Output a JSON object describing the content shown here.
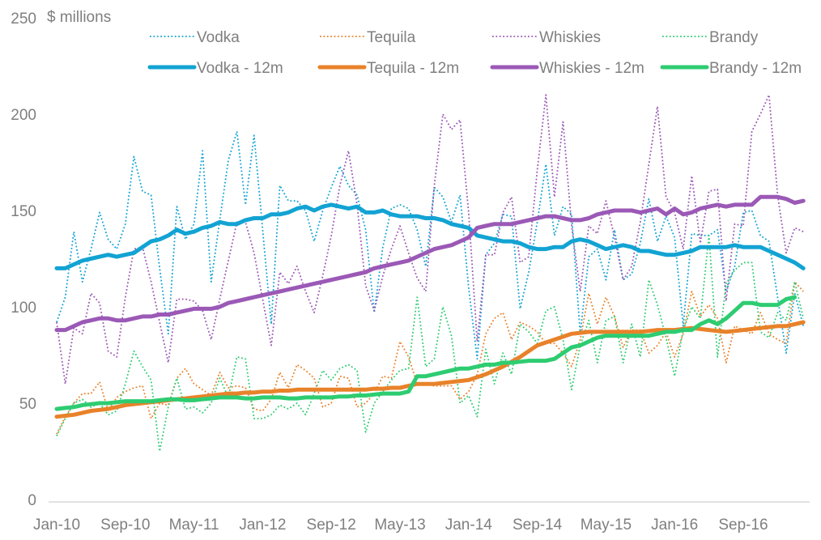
{
  "chart_data": {
    "type": "line",
    "title": "",
    "ylabel": "$ millions",
    "xlabel": "",
    "ylim": [
      0,
      250
    ],
    "yticks": [
      "0",
      "50",
      "100",
      "150",
      "200",
      "250"
    ],
    "ytick_values": [
      0,
      50,
      100,
      150,
      200,
      250
    ],
    "xtick_labels": [
      "Jan-10",
      "Sep-10",
      "May-11",
      "Jan-12",
      "Sep-12",
      "May-13",
      "Jan-14",
      "Sep-14",
      "May-15",
      "Jan-16",
      "Sep-16"
    ],
    "xtick_index": [
      0,
      8,
      16,
      24,
      32,
      40,
      48,
      56,
      64,
      72,
      80
    ],
    "x_start": "Jan-10",
    "x_frequency": "monthly",
    "n_points": 88,
    "grid": false,
    "legend_position": "top",
    "colors": {
      "vodka": "#12a3d3",
      "tequila": "#e8822a",
      "whiskies": "#9b59b6",
      "brandy": "#2ecc71"
    },
    "series": [
      {
        "name": "Vodka",
        "key": "vodka",
        "style": "dotted",
        "values": [
          92,
          105,
          139,
          113,
          130,
          149,
          135,
          130,
          143,
          178,
          160,
          158,
          120,
          86,
          152,
          135,
          143,
          181,
          113,
          145,
          176,
          191,
          153,
          189,
          140,
          91,
          163,
          155,
          155,
          150,
          134,
          150,
          162,
          173,
          163,
          158,
          140,
          97,
          131,
          151,
          153,
          151,
          140,
          121,
          162,
          157,
          144,
          158,
          110,
          73,
          127,
          133,
          148,
          147,
          99,
          118,
          144,
          174,
          137,
          152,
          148,
          86,
          126,
          130,
          114,
          140,
          114,
          117,
          133,
          156,
          134,
          147,
          136,
          90,
          138,
          137,
          137,
          140,
          108,
          121,
          149,
          150,
          137,
          134,
          105,
          76,
          107,
          90
        ]
      },
      {
        "name": "Tequila",
        "key": "tequila",
        "style": "dotted",
        "values": [
          34,
          43,
          50,
          55,
          55,
          61,
          46,
          53,
          56,
          58,
          59,
          42,
          50,
          49,
          63,
          68,
          60,
          57,
          54,
          66,
          58,
          59,
          58,
          47,
          46,
          52,
          66,
          58,
          70,
          67,
          63,
          48,
          50,
          64,
          63,
          48,
          50,
          55,
          64,
          63,
          82,
          74,
          60,
          60,
          59,
          59,
          59,
          52,
          56,
          65,
          86,
          94,
          97,
          83,
          92,
          90,
          87,
          81,
          81,
          76,
          69,
          83,
          107,
          91,
          105,
          95,
          79,
          88,
          88,
          76,
          80,
          87,
          74,
          86,
          108,
          95,
          101,
          94,
          71,
          90,
          88,
          86,
          97,
          86,
          83,
          81,
          113,
          108
        ]
      },
      {
        "name": "Whiskies",
        "key": "whiskies",
        "style": "dotted",
        "values": [
          92,
          60,
          89,
          86,
          107,
          102,
          77,
          74,
          105,
          130,
          131,
          113,
          92,
          71,
          104,
          104,
          103,
          98,
          83,
          104,
          124,
          144,
          144,
          128,
          104,
          80,
          118,
          112,
          121,
          108,
          97,
          116,
          137,
          163,
          181,
          153,
          111,
          98,
          116,
          130,
          142,
          128,
          115,
          108,
          163,
          200,
          192,
          197,
          149,
          82,
          127,
          127,
          149,
          157,
          123,
          126,
          171,
          210,
          157,
          196,
          142,
          108,
          142,
          138,
          155,
          136,
          114,
          121,
          144,
          174,
          204,
          157,
          149,
          130,
          168,
          133,
          160,
          161,
          103,
          143,
          142,
          191,
          200,
          210,
          158,
          128,
          141,
          139
        ]
      },
      {
        "name": "Brandy",
        "key": "brandy",
        "style": "dotted",
        "values": [
          33,
          42,
          50,
          52,
          48,
          50,
          44,
          46,
          60,
          77,
          69,
          62,
          25,
          48,
          63,
          47,
          48,
          45,
          50,
          63,
          53,
          74,
          73,
          42,
          42,
          44,
          49,
          47,
          50,
          44,
          55,
          67,
          62,
          68,
          70,
          67,
          35,
          50,
          56,
          62,
          67,
          68,
          105,
          69,
          73,
          100,
          85,
          50,
          54,
          43,
          78,
          60,
          76,
          65,
          91,
          87,
          81,
          98,
          100,
          83,
          57,
          80,
          93,
          71,
          93,
          95,
          71,
          91,
          74,
          114,
          101,
          84,
          64,
          88,
          100,
          94,
          137,
          74,
          112,
          119,
          123,
          123,
          87,
          84,
          97,
          93,
          113,
          94
        ]
      },
      {
        "name": "Vodka - 12m",
        "key": "vodka",
        "style": "solid",
        "values": [
          120,
          120,
          122,
          124,
          125,
          126,
          127,
          126,
          127,
          128,
          131,
          134,
          135,
          137,
          140,
          138,
          139,
          141,
          142,
          144,
          143,
          143,
          145,
          146,
          146,
          148,
          148,
          149,
          151,
          152,
          150,
          152,
          153,
          152,
          151,
          152,
          149,
          149,
          150,
          148,
          147,
          147,
          147,
          146,
          146,
          145,
          143,
          142,
          141,
          137,
          136,
          135,
          134,
          134,
          133,
          131,
          130,
          130,
          131,
          131,
          134,
          135,
          134,
          132,
          130,
          131,
          132,
          131,
          129,
          129,
          128,
          127,
          127,
          128,
          129,
          131,
          131,
          131,
          131,
          132,
          131,
          131,
          131,
          129,
          127,
          125,
          123,
          120
        ]
      },
      {
        "name": "Tequila - 12m",
        "key": "tequila",
        "style": "solid",
        "values": [
          43,
          43.5,
          44,
          45,
          46,
          46.5,
          47,
          48,
          49,
          49.5,
          50,
          50.5,
          51,
          51.5,
          52,
          52.5,
          53,
          53.5,
          54,
          54.5,
          55,
          55,
          55.5,
          55.5,
          56,
          56,
          56.5,
          56.5,
          57,
          57,
          57,
          57,
          57,
          57,
          57,
          57,
          57,
          57.5,
          57.5,
          58,
          58,
          59,
          60,
          60,
          60,
          60.5,
          61,
          61.5,
          62,
          63.5,
          65,
          67,
          69,
          71.5,
          74,
          77,
          80,
          81.5,
          83,
          84.5,
          86,
          86.5,
          87,
          87,
          87,
          87,
          87,
          87,
          87,
          87.5,
          88,
          88,
          88,
          88.5,
          89,
          88.5,
          88,
          87.5,
          87,
          87.5,
          88,
          88.5,
          89,
          89.5,
          90,
          90,
          91,
          92
        ]
      },
      {
        "name": "Whiskies - 12m",
        "key": "whiskies",
        "style": "solid",
        "values": [
          88,
          88,
          90,
          92,
          93,
          94,
          94,
          93,
          93,
          94,
          95,
          95,
          96,
          96,
          97,
          98,
          99,
          99,
          99,
          100,
          102,
          103,
          104,
          105,
          106,
          107,
          108,
          109,
          110,
          111,
          112,
          113,
          114,
          115,
          116,
          117,
          118,
          120,
          121,
          122,
          123,
          124,
          126,
          128,
          130,
          131,
          132,
          134,
          136,
          141,
          142,
          143,
          143,
          143,
          144,
          145,
          146,
          147,
          147,
          146,
          145,
          145,
          146,
          148,
          149,
          150,
          150,
          150,
          149,
          150,
          151,
          148,
          151,
          148,
          149,
          151,
          152,
          153,
          152,
          153,
          153,
          153,
          157,
          157,
          157,
          156,
          154,
          155
        ]
      },
      {
        "name": "Brandy - 12m",
        "key": "brandy",
        "style": "solid",
        "values": [
          47,
          47.5,
          48,
          49,
          49.5,
          50,
          50,
          50.5,
          51,
          51,
          51,
          51,
          51.5,
          52,
          52,
          51.5,
          51.5,
          52,
          52.5,
          53,
          53,
          53,
          52.5,
          52.5,
          53,
          53,
          53,
          52.5,
          52.5,
          53,
          53,
          53,
          53,
          53.5,
          53.5,
          54,
          54,
          54.5,
          55,
          55,
          55,
          56,
          64,
          64,
          65,
          66,
          67,
          68,
          68,
          69,
          70,
          70,
          71,
          71,
          71.5,
          72,
          72,
          72,
          73,
          76,
          79,
          80,
          82,
          84,
          85,
          85,
          85,
          85,
          85,
          85,
          86,
          87,
          87,
          88,
          88,
          91,
          93,
          91,
          94,
          98,
          102,
          102,
          101,
          101,
          101,
          104,
          105,
          null
        ]
      }
    ]
  }
}
